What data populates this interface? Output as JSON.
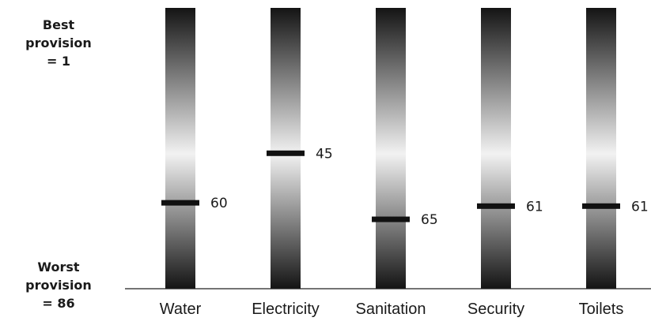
{
  "chart_data": {
    "type": "bar",
    "title": "",
    "xlabel": "",
    "ylabel": "",
    "ylim": [
      1,
      86
    ],
    "y_inverted": true,
    "grid": false,
    "categories": [
      "Water",
      "Electricity",
      "Sanitation",
      "Security",
      "Toilets"
    ],
    "values": [
      60,
      45,
      65,
      61,
      61
    ],
    "value_labels": [
      "60",
      "45",
      "65",
      "61",
      "61"
    ],
    "top_label": {
      "line1": "Best",
      "line2": "provision",
      "line3": "= 1"
    },
    "bottom_label": {
      "line1": "Worst",
      "line2": "provision",
      "line3": "= 86"
    },
    "colors": {
      "bar_dark": "#141414",
      "bar_light": "#f2f2f2",
      "marker": "#111111",
      "axis": "#222222"
    }
  }
}
